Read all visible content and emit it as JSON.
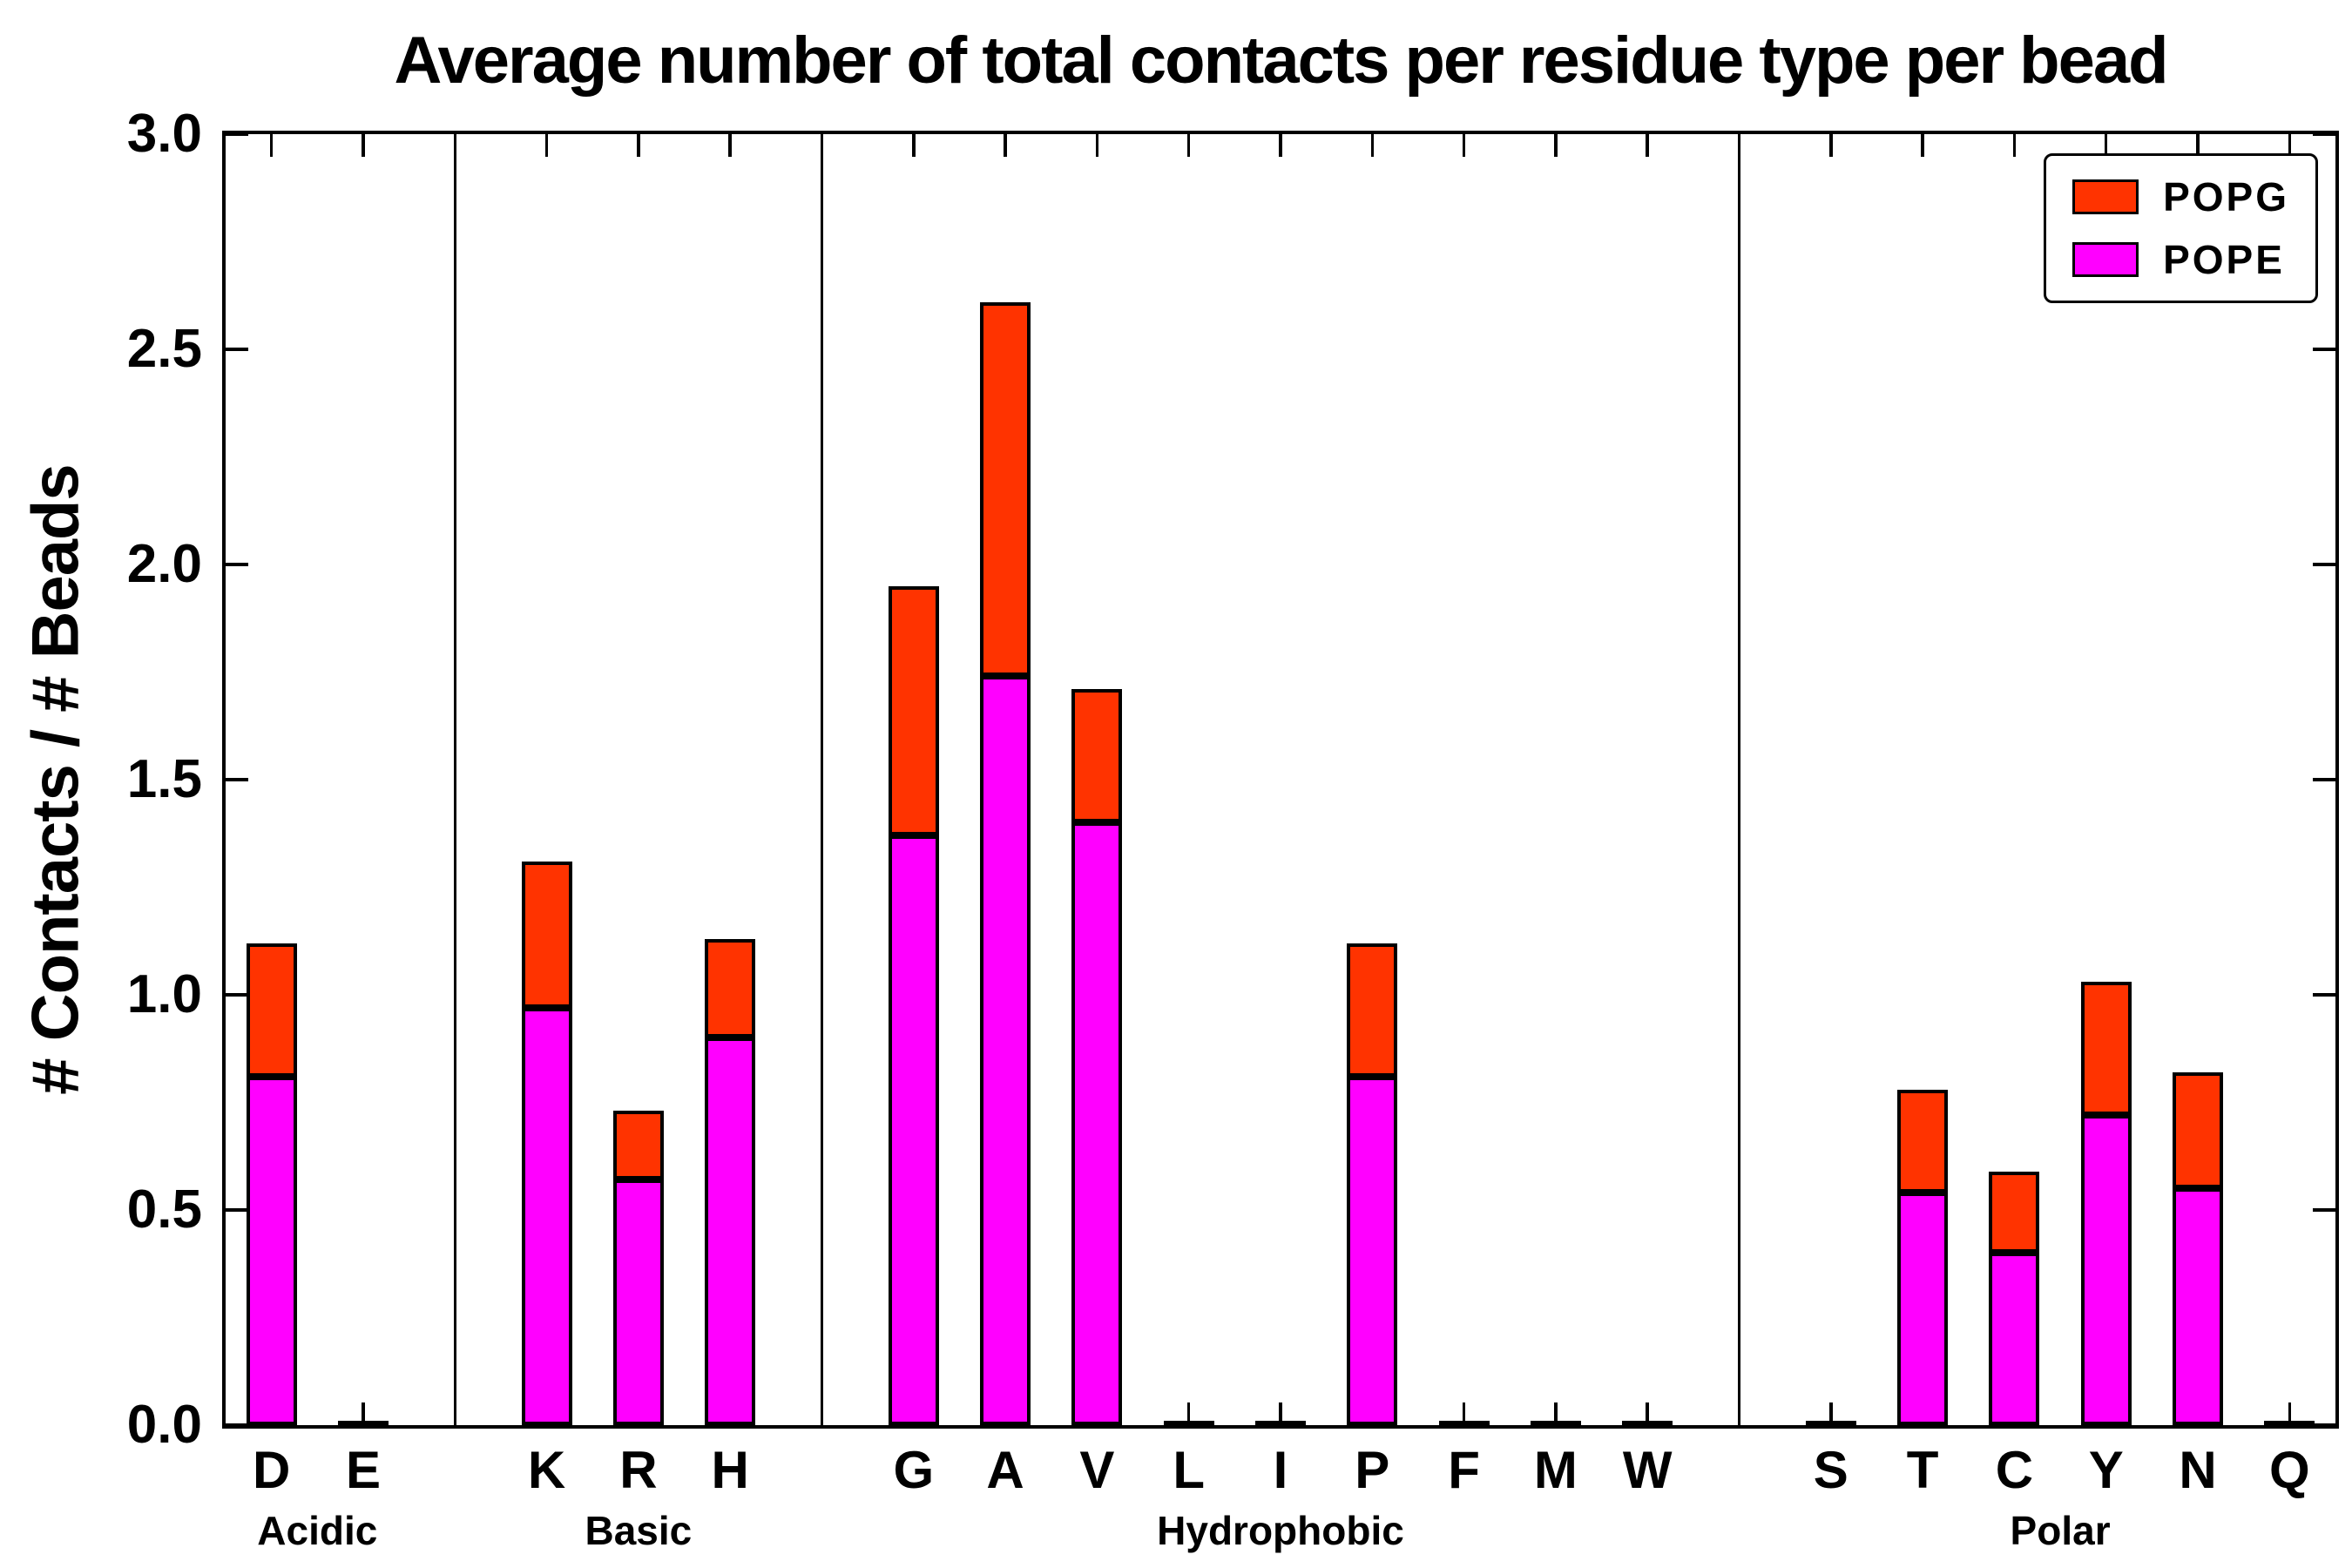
{
  "title": "Average number of total contacts per residue type per bead",
  "ylabel": "# Contacts / # Beads",
  "legend": [
    {
      "label": "POPG",
      "color": "#FF3300"
    },
    {
      "label": "POPE",
      "color": "#FF00FF"
    }
  ],
  "chart_data": {
    "type": "bar",
    "stacked": true,
    "title": "Average number of total contacts per residue type per bead",
    "xlabel": "",
    "ylabel": "# Contacts / # Beads",
    "ylim": [
      0,
      3
    ],
    "ytick_values": [
      0,
      0.5,
      1.0,
      1.5,
      2.0,
      2.5,
      3.0
    ],
    "ytick_labels": [
      "0.0",
      "0.5",
      "1.0",
      "1.5",
      "2.0",
      "2.5",
      "3.0"
    ],
    "legend_position": "upper right",
    "grid": false,
    "categories": [
      "D",
      "E",
      "K",
      "R",
      "H",
      "G",
      "A",
      "V",
      "L",
      "I",
      "P",
      "F",
      "M",
      "W",
      "S",
      "T",
      "C",
      "Y",
      "N",
      "Q"
    ],
    "groups": [
      {
        "label": "Acidic",
        "categories": [
          "D",
          "E"
        ]
      },
      {
        "label": "Basic",
        "categories": [
          "K",
          "R",
          "H"
        ]
      },
      {
        "label": "Hydrophobic",
        "categories": [
          "G",
          "A",
          "V",
          "L",
          "I",
          "P",
          "F",
          "M",
          "W"
        ]
      },
      {
        "label": "Polar",
        "categories": [
          "S",
          "T",
          "C",
          "Y",
          "N",
          "Q"
        ]
      }
    ],
    "series": [
      {
        "name": "POPE",
        "color": "#FF00FF",
        "values": [
          0.81,
          0,
          0.97,
          0.57,
          0.9,
          1.37,
          1.74,
          1.4,
          0,
          0,
          0.81,
          0,
          0,
          0,
          0,
          0.54,
          0.4,
          0.72,
          0.55,
          0
        ]
      },
      {
        "name": "POPG",
        "color": "#FF3300",
        "values": [
          0.31,
          0,
          0.34,
          0.16,
          0.23,
          0.58,
          0.87,
          0.31,
          0,
          0,
          0.31,
          0,
          0,
          0,
          0,
          0.24,
          0.19,
          0.31,
          0.27,
          0
        ]
      }
    ],
    "totals": [
      1.12,
      0,
      1.31,
      0.73,
      1.13,
      1.95,
      2.61,
      1.71,
      0,
      0,
      1.12,
      0,
      0,
      0,
      0,
      0.78,
      0.59,
      1.03,
      0.82,
      0
    ]
  }
}
